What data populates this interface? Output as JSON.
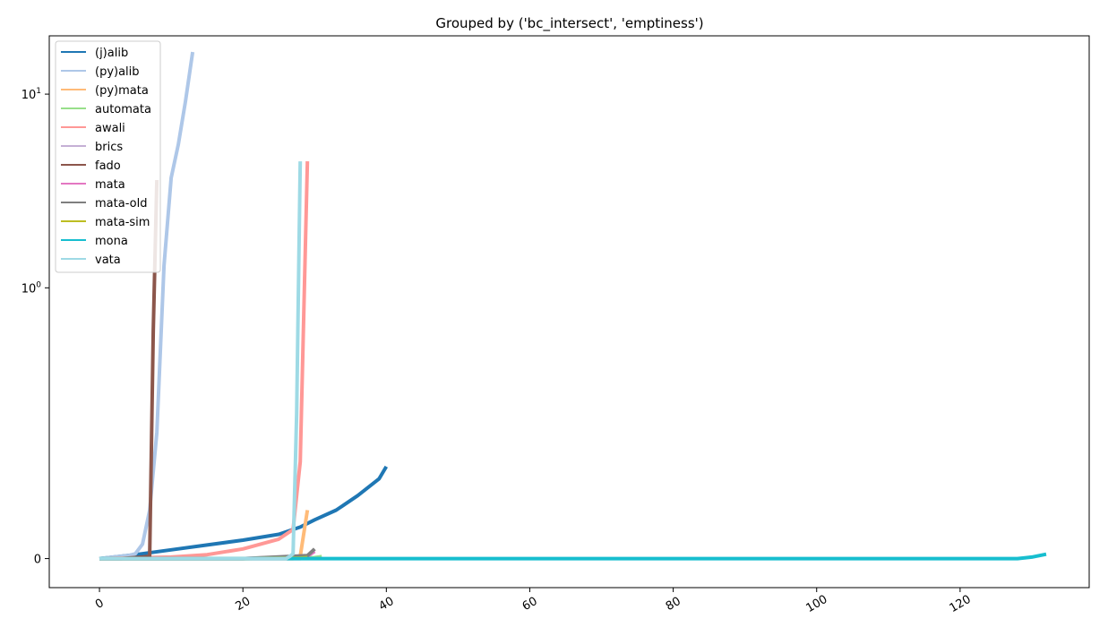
{
  "chart_data": {
    "type": "line",
    "title": "Grouped by ('bc_intersect', 'emptiness')",
    "xlabel": "",
    "ylabel": "",
    "xlim": [
      -7,
      138
    ],
    "ylim": [
      -0.06,
      20
    ],
    "yscale": "symlog",
    "yscale_linthresh": 0.4,
    "x_ticks": [
      0,
      20,
      40,
      60,
      80,
      100,
      120
    ],
    "x_tick_labels": [
      "0",
      "20",
      "40",
      "60",
      "80",
      "100",
      "120"
    ],
    "y_ticks": [
      0,
      1,
      10
    ],
    "y_tick_labels": [
      "0",
      "10^0",
      "10^1"
    ],
    "grid": false,
    "legend_position": "upper-left",
    "series": [
      {
        "name": "(j)alib",
        "color": "#1f77b4",
        "x": [
          0,
          5,
          10,
          15,
          20,
          25,
          28,
          30,
          33,
          36,
          39,
          40
        ],
        "y": [
          0.0,
          0.008,
          0.018,
          0.028,
          0.038,
          0.05,
          0.065,
          0.08,
          0.1,
          0.13,
          0.165,
          0.19
        ]
      },
      {
        "name": "(py)alib",
        "color": "#aec7e8",
        "x": [
          0,
          2,
          4,
          5,
          6,
          7,
          8,
          9,
          10,
          11,
          12,
          13
        ],
        "y": [
          0.0,
          0.003,
          0.006,
          0.01,
          0.03,
          0.1,
          0.26,
          1.3,
          3.7,
          5.5,
          9.2,
          16.5
        ]
      },
      {
        "name": "(py)mata",
        "color": "#ffbb78",
        "x": [
          0,
          20,
          27,
          28,
          29
        ],
        "y": [
          0.0,
          0.0,
          0.0,
          0.005,
          0.1
        ]
      },
      {
        "name": "automata",
        "color": "#98df8a",
        "x": [
          0,
          20,
          30,
          31
        ],
        "y": [
          0.0,
          0.0,
          0.002,
          0.004
        ]
      },
      {
        "name": "awali",
        "color": "#ff9896",
        "x": [
          0,
          10,
          15,
          20,
          25,
          27,
          28,
          29
        ],
        "y": [
          0.0,
          0.003,
          0.008,
          0.02,
          0.04,
          0.06,
          0.2,
          4.5
        ]
      },
      {
        "name": "brics",
        "color": "#c5b0d5",
        "x": [
          0,
          10,
          20,
          28,
          29
        ],
        "y": [
          0.0,
          0.0,
          0.0,
          0.0,
          0.002
        ]
      },
      {
        "name": "fado",
        "color": "#8c564b",
        "x": [
          0,
          3,
          6,
          7,
          7.5,
          8
        ],
        "y": [
          0.0,
          0.0,
          0.003,
          0.005,
          0.6,
          3.6
        ]
      },
      {
        "name": "mata",
        "color": "#e377c2",
        "x": [
          0,
          20,
          29,
          30
        ],
        "y": [
          0.0,
          0.0,
          0.005,
          0.015
        ]
      },
      {
        "name": "mata-old",
        "color": "#7f7f7f",
        "x": [
          0,
          20,
          29,
          30
        ],
        "y": [
          0.0,
          0.0,
          0.006,
          0.02
        ]
      },
      {
        "name": "mata-sim",
        "color": "#bcbd22",
        "x": [
          0,
          20,
          28,
          29
        ],
        "y": [
          0.0,
          0.0,
          0.001,
          0.002
        ]
      },
      {
        "name": "mona",
        "color": "#17becf",
        "x": [
          0,
          40,
          80,
          120,
          125,
          128,
          130,
          131,
          132
        ],
        "y": [
          0.0,
          0.0,
          0.0,
          0.0,
          0.0,
          0.0,
          0.003,
          0.006,
          0.009
        ]
      },
      {
        "name": "vata",
        "color": "#9edae5",
        "x": [
          0,
          10,
          20,
          26,
          26.5,
          27,
          27.5,
          28
        ],
        "y": [
          0.0,
          0.0,
          0.0,
          0.0,
          0.004,
          0.01,
          0.3,
          4.5
        ]
      }
    ]
  }
}
